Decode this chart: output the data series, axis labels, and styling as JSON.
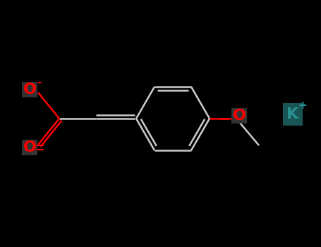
{
  "background_color": "#000000",
  "bond_color": "#cccccc",
  "oxygen_color": "#ff0000",
  "potassium_color": "#2a9090",
  "potassium_bg": "#1a5555",
  "line_width": 1.8,
  "font_size_atom": 16,
  "font_size_charge": 11,
  "O_minus_label": "O",
  "O_minus_charge": "-",
  "O_double_label": "O",
  "O_methoxy_label": "O",
  "K_label": "K",
  "K_charge": "+"
}
